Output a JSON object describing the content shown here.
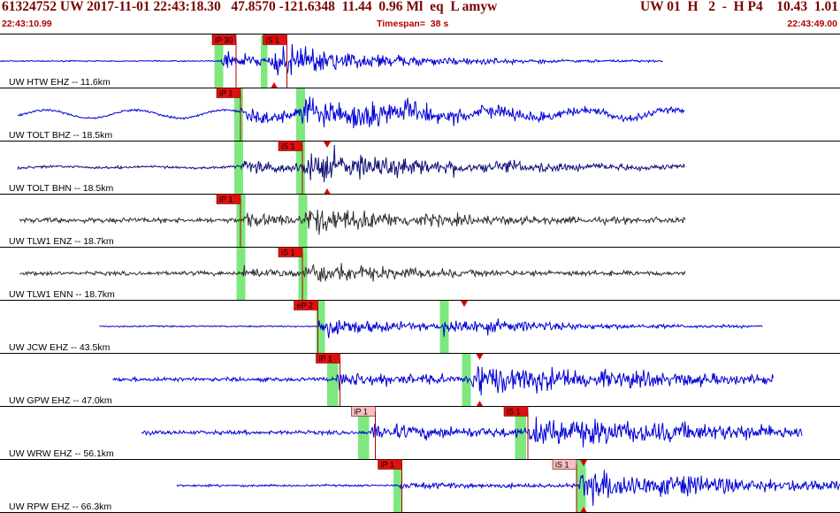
{
  "header": {
    "title": "61324752 UW 2017-11-01 22:43:18.30   47.8570 -121.6348  11.44  0.96 Ml  eq  L amyw",
    "right": "UW 01  H   2  -  H P4    10.43  1.01",
    "start_time": "22:43:10.99",
    "timespan": "Timespan=  38 s",
    "end_time": "22:43:49.00"
  },
  "colors": {
    "trace_blue": "#0000d8",
    "trace_gray": "#303030",
    "pick_box": "#e01010",
    "pick_box_light": "#f4c0c0",
    "green_window": "#7ee87e",
    "header_text": "#7a0000"
  },
  "time_window": {
    "start_s": 0,
    "end_s": 38
  },
  "channels": [
    {
      "label": "UW HTW EHZ -- 11.6km",
      "color": "blue",
      "trace": {
        "start_s": 0.0,
        "end_s": 30.0,
        "noise": 0.04,
        "low_freq": 0,
        "p_amp": 0.5,
        "s_amp": 0.9,
        "decay": 0.18
      },
      "p_time": 10.0,
      "s_time": 12.2,
      "picks": [
        {
          "label": "iP 30",
          "time": 9.6,
          "style": "red"
        },
        {
          "label": "iS 1",
          "time": 11.9,
          "style": "red"
        }
      ],
      "green_windows": [
        {
          "start": 9.7,
          "end": 10.1
        },
        {
          "start": 11.8,
          "end": 12.1
        }
      ],
      "markers": [
        {
          "time": 12.4,
          "position": "top"
        },
        {
          "time": 12.4,
          "position": "bottom"
        }
      ]
    },
    {
      "label": "UW TOLT BHZ -- 18.5km",
      "color": "blue",
      "trace": {
        "start_s": 0.8,
        "end_s": 31.0,
        "noise": 0.07,
        "low_freq": 0.28,
        "p_amp": 0.5,
        "s_amp": 0.95,
        "decay": 0.12
      },
      "p_time": 10.9,
      "s_time": 13.6,
      "picks": [
        {
          "label": "iP 1",
          "time": 9.8,
          "style": "red"
        }
      ],
      "green_windows": [
        {
          "start": 10.6,
          "end": 11.0
        },
        {
          "start": 13.4,
          "end": 13.8
        }
      ],
      "markers": []
    },
    {
      "label": "UW TOLT BHN -- 18.5km",
      "color": "navy",
      "trace": {
        "start_s": 0.8,
        "end_s": 31.0,
        "noise": 0.09,
        "low_freq": 0.05,
        "p_amp": 0.45,
        "s_amp": 0.9,
        "decay": 0.13
      },
      "p_time": 10.9,
      "s_time": 13.6,
      "picks": [
        {
          "label": "iS 1",
          "time": 12.6,
          "style": "red"
        }
      ],
      "green_windows": [
        {
          "start": 10.6,
          "end": 11.0
        },
        {
          "start": 13.4,
          "end": 13.8
        }
      ],
      "markers": [
        {
          "time": 14.8,
          "position": "top"
        },
        {
          "time": 14.8,
          "position": "bottom"
        }
      ]
    },
    {
      "label": "UW TLW1 ENZ -- 18.7km",
      "color": "gray",
      "trace": {
        "start_s": 0.9,
        "end_s": 31.0,
        "noise": 0.18,
        "low_freq": 0,
        "p_amp": 0.35,
        "s_amp": 0.75,
        "decay": 0.2
      },
      "p_time": 11.0,
      "s_time": 13.8,
      "picks": [
        {
          "label": "iP 1",
          "time": 9.8,
          "style": "red"
        }
      ],
      "green_windows": [
        {
          "start": 10.7,
          "end": 11.1
        },
        {
          "start": 13.5,
          "end": 13.9
        }
      ],
      "markers": []
    },
    {
      "label": "UW TLW1 ENN -- 18.7km",
      "color": "gray",
      "trace": {
        "start_s": 0.9,
        "end_s": 31.0,
        "noise": 0.14,
        "low_freq": 0,
        "p_amp": 0.3,
        "s_amp": 0.6,
        "decay": 0.22
      },
      "p_time": 11.0,
      "s_time": 13.8,
      "picks": [
        {
          "label": "iS 1",
          "time": 12.6,
          "style": "red"
        }
      ],
      "green_windows": [
        {
          "start": 10.7,
          "end": 11.1
        },
        {
          "start": 13.5,
          "end": 13.9
        }
      ],
      "markers": []
    },
    {
      "label": "UW JCW EHZ -- 43.5km",
      "color": "blue",
      "trace": {
        "start_s": 4.5,
        "end_s": 34.5,
        "noise": 0.05,
        "low_freq": 0,
        "p_amp": 0.75,
        "s_amp": 0.5,
        "decay": 0.18
      },
      "p_time": 14.4,
      "s_time": 20.0,
      "picks": [
        {
          "label": "eP 2",
          "time": 13.3,
          "style": "red"
        }
      ],
      "green_windows": [
        {
          "start": 14.3,
          "end": 14.7
        },
        {
          "start": 19.9,
          "end": 20.3
        }
      ],
      "markers": [
        {
          "time": 21.0,
          "position": "top"
        }
      ]
    },
    {
      "label": "UW GPW EHZ -- 47.0km",
      "color": "blue",
      "trace": {
        "start_s": 5.1,
        "end_s": 35.0,
        "noise": 0.14,
        "low_freq": 0,
        "p_amp": 0.45,
        "s_amp": 0.95,
        "decay": 0.12
      },
      "p_time": 15.2,
      "s_time": 21.3,
      "picks": [
        {
          "label": "iP 1",
          "time": 14.3,
          "style": "red"
        }
      ],
      "green_windows": [
        {
          "start": 14.8,
          "end": 15.3
        },
        {
          "start": 20.9,
          "end": 21.3
        }
      ],
      "markers": [
        {
          "time": 21.7,
          "position": "top"
        },
        {
          "time": 21.7,
          "position": "bottom"
        }
      ]
    },
    {
      "label": "UW WRW EHZ -- 56.1km",
      "color": "blue",
      "trace": {
        "start_s": 6.4,
        "end_s": 36.3,
        "noise": 0.14,
        "low_freq": 0,
        "p_amp": 0.45,
        "s_amp": 0.8,
        "decay": 0.08
      },
      "p_time": 16.8,
      "s_time": 23.8,
      "picks": [
        {
          "label": "iP 1",
          "time": 15.9,
          "style": "light"
        },
        {
          "label": "iS 1",
          "time": 22.8,
          "style": "red"
        }
      ],
      "green_windows": [
        {
          "start": 16.2,
          "end": 16.7
        },
        {
          "start": 23.3,
          "end": 23.8
        }
      ],
      "markers": []
    },
    {
      "label": "UW RPW EHZ -- 66.3km",
      "color": "blue",
      "trace": {
        "start_s": 8.0,
        "end_s": 38.0,
        "noise": 0.07,
        "low_freq": 0,
        "p_amp": 0.2,
        "s_amp": 0.95,
        "decay": 0.1
      },
      "p_time": 18.1,
      "s_time": 26.2,
      "picks": [
        {
          "label": "iP 1",
          "time": 17.1,
          "style": "red"
        },
        {
          "label": "iS 1",
          "time": 25.0,
          "style": "light"
        }
      ],
      "green_windows": [
        {
          "start": 17.8,
          "end": 18.2
        },
        {
          "start": 26.1,
          "end": 26.5
        }
      ],
      "markers": [
        {
          "time": 26.4,
          "position": "top"
        },
        {
          "time": 26.4,
          "position": "bottom"
        }
      ]
    }
  ]
}
